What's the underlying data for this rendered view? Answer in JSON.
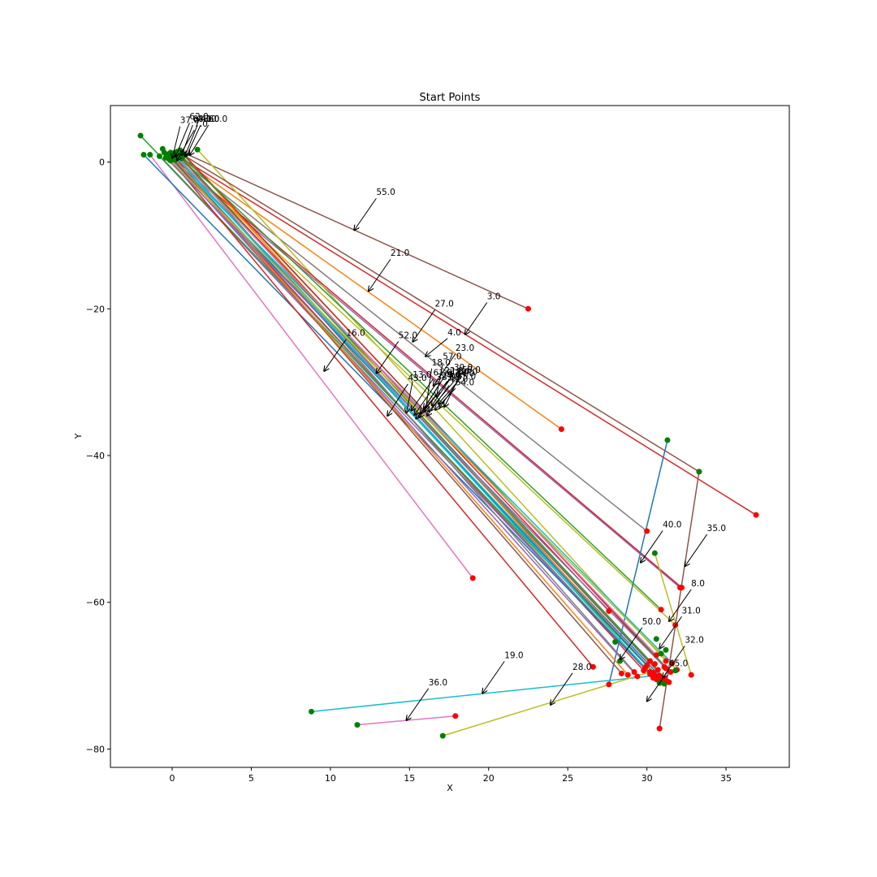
{
  "chart_data": {
    "type": "scatter",
    "title": "Start Points",
    "xlabel": "X",
    "ylabel": "Y",
    "xlim": [
      -3.9,
      39.0
    ],
    "ylim": [
      -82.5,
      7.7
    ],
    "xticks": [
      0,
      5,
      10,
      15,
      20,
      25,
      30,
      35
    ],
    "yticks": [
      0,
      -20,
      -40,
      -60,
      -80
    ],
    "grid": false,
    "line_colors": [
      "#1f77b4",
      "#ff7f0e",
      "#2ca02c",
      "#d62728",
      "#9467bd",
      "#8c564b",
      "#e377c2",
      "#7f7f7f",
      "#bcbd22",
      "#17becf"
    ],
    "start_color": "#008000",
    "end_color": "#ff0000",
    "segments": [
      {
        "label": "55.0",
        "start": [
          0.5,
          1.5
        ],
        "end": [
          22.5,
          -20.0
        ],
        "color": "#8c564b",
        "ann_xy": [
          11.5,
          -9.3
        ],
        "ann_text": [
          12.9,
          -4.5
        ]
      },
      {
        "label": "21.0",
        "start": [
          0.2,
          1.0
        ],
        "end": [
          24.6,
          -36.4
        ],
        "color": "#ff7f0e",
        "ann_xy": [
          12.4,
          -17.6
        ],
        "ann_text": [
          13.8,
          -12.8
        ]
      },
      {
        "label": "3.0",
        "start": [
          0.4,
          0.8
        ],
        "end": [
          36.9,
          -48.1
        ],
        "color": "#d62728",
        "ann_xy": [
          18.5,
          -23.5
        ],
        "ann_text": [
          19.9,
          -18.7
        ]
      },
      {
        "label": "27.0",
        "start": [
          0.0,
          1.2
        ],
        "end": [
          30.0,
          -50.3
        ],
        "color": "#7f7f7f",
        "ann_xy": [
          15.2,
          -24.5
        ],
        "ann_text": [
          16.6,
          -19.7
        ]
      },
      {
        "label": "4.0",
        "start": [
          -0.3,
          0.9
        ],
        "end": [
          32.1,
          -58.0
        ],
        "color": "#9467bd",
        "ann_xy": [
          16.0,
          -26.5
        ],
        "ann_text": [
          17.4,
          -23.6
        ]
      },
      {
        "label": "16.0",
        "start": [
          -1.4,
          1.0
        ],
        "end": [
          19.0,
          -56.7
        ],
        "color": "#e377c2",
        "ann_xy": [
          9.6,
          -28.5
        ],
        "ann_text": [
          11.0,
          -23.7
        ]
      },
      {
        "label": "52.0",
        "start": [
          -0.1,
          0.6
        ],
        "end": [
          29.8,
          -69.3
        ],
        "color": "#d62728",
        "ann_xy": [
          12.9,
          -28.8
        ],
        "ann_text": [
          14.3,
          -24.0
        ]
      },
      {
        "label": "23.0",
        "start": [
          1.6,
          1.7
        ],
        "end": [
          31.2,
          -68.0
        ],
        "color": "#bcbd22",
        "ann_xy": [
          16.5,
          -30.5
        ],
        "ann_text": [
          17.9,
          -25.7
        ]
      },
      {
        "label": "57.0",
        "start": [
          0.7,
          1.0
        ],
        "end": [
          31.5,
          -69.5
        ],
        "color": "#2ca02c",
        "ann_xy": [
          16.7,
          -32.0
        ],
        "ann_text": [
          17.1,
          -26.9
        ]
      },
      {
        "label": "18.0",
        "start": [
          -0.6,
          1.8
        ],
        "end": [
          30.8,
          -70.0
        ],
        "color": "#1f77b4",
        "ann_xy": [
          16.0,
          -34.0
        ],
        "ann_text": [
          16.4,
          -27.7
        ]
      },
      {
        "label": "58.0",
        "start": [
          0.3,
          0.5
        ],
        "end": [
          31.3,
          -70.8
        ],
        "color": "#8c564b",
        "ann_xy": [
          16.9,
          -33.5
        ],
        "ann_text": [
          18.3,
          -28.7
        ]
      },
      {
        "label": "13.0",
        "start": [
          0.1,
          0.9
        ],
        "end": [
          30.9,
          -70.6
        ],
        "color": "#17becf",
        "ann_xy": [
          14.8,
          -34.2
        ],
        "ann_text": [
          15.2,
          -29.4
        ]
      },
      {
        "label": "43.0",
        "start": [
          -0.8,
          0.8
        ],
        "end": [
          30.4,
          -70.3
        ],
        "color": "#9467bd",
        "ann_xy": [
          13.6,
          -34.6
        ],
        "ann_text": [
          14.9,
          -29.8
        ]
      },
      {
        "label": "40.0",
        "start": [
          -0.2,
          0.4
        ],
        "end": [
          30.2,
          -69.8
        ],
        "color": "#7f7f7f",
        "ann_xy": [
          29.6,
          -54.6
        ],
        "ann_text": [
          31.0,
          -49.8
        ]
      },
      {
        "label": "35.0",
        "start": [
          0.6,
          1.1
        ],
        "end": [
          33.3,
          -42.2
        ],
        "color": "#8c564b",
        "ann_xy": [
          32.4,
          -55.1
        ],
        "ann_text": [
          33.8,
          -50.3
        ]
      },
      {
        "label": "8.0",
        "start": [
          0.0,
          0.7
        ],
        "end": [
          32.2,
          -58.0
        ],
        "color": "#d62728",
        "ann_xy": [
          31.4,
          -62.6
        ],
        "ann_text": [
          32.8,
          -57.8
        ]
      },
      {
        "label": "31.0",
        "start": [
          -0.1,
          1.3
        ],
        "end": [
          31.8,
          -63.1
        ],
        "color": "#bcbd22",
        "ann_xy": [
          30.8,
          -66.3
        ],
        "ann_text": [
          32.2,
          -61.5
        ]
      },
      {
        "label": "50.0",
        "start": [
          31.3,
          -37.9
        ],
        "end": [
          27.6,
          -71.2
        ],
        "color": "#1f77b4",
        "ann_xy": [
          28.3,
          -67.8
        ],
        "ann_text": [
          29.7,
          -63.0
        ]
      },
      {
        "label": "32.0",
        "start": [
          30.5,
          -53.3
        ],
        "end": [
          32.8,
          -69.9
        ],
        "color": "#bcbd22",
        "ann_xy": [
          31.0,
          -70.3
        ],
        "ann_text": [
          32.4,
          -65.5
        ]
      },
      {
        "label": "65.0",
        "start": [
          33.3,
          -42.2
        ],
        "end": [
          30.8,
          -77.2
        ],
        "color": "#8c564b",
        "ann_xy": [
          30.0,
          -73.5
        ],
        "ann_text": [
          31.4,
          -68.7
        ]
      },
      {
        "label": "19.0",
        "start": [
          8.8,
          -74.9
        ],
        "end": [
          30.5,
          -70.0
        ],
        "color": "#17becf",
        "ann_xy": [
          19.6,
          -72.4
        ],
        "ann_text": [
          21.0,
          -67.6
        ]
      },
      {
        "label": "28.0",
        "start": [
          17.1,
          -78.2
        ],
        "end": [
          30.2,
          -69.5
        ],
        "color": "#bcbd22",
        "ann_xy": [
          23.9,
          -74.0
        ],
        "ann_text": [
          25.3,
          -69.2
        ]
      },
      {
        "label": "36.0",
        "start": [
          11.7,
          -76.7
        ],
        "end": [
          17.9,
          -75.5
        ],
        "color": "#e377c2",
        "ann_xy": [
          14.8,
          -76.1
        ],
        "ann_text": [
          16.2,
          -71.3
        ]
      },
      {
        "label": "37.0",
        "start": [
          -2.0,
          3.6
        ],
        "end": [
          31.0,
          -70.9
        ],
        "color": "#2ca02c",
        "ann_xy": [
          0.0,
          0.5
        ],
        "ann_text": [
          0.5,
          5.3
        ]
      },
      {
        "label": "62.0",
        "start": [
          -1.8,
          1.0
        ],
        "end": [
          30.6,
          -70.5
        ],
        "color": "#1f77b4",
        "ann_xy": [
          0.2,
          0.7
        ],
        "ann_text": [
          1.1,
          5.8
        ]
      },
      {
        "label": "68.0",
        "start": [
          0.8,
          0.9
        ],
        "end": [
          30.4,
          -69.6
        ],
        "color": "#ff7f0e",
        "ann_xy": [
          0.6,
          0.9
        ],
        "ann_text": [
          1.3,
          5.5
        ]
      },
      {
        "label": "46.0",
        "start": [
          0.5,
          1.6
        ],
        "end": [
          31.1,
          -68.8
        ],
        "color": "#d62728",
        "ann_xy": [
          0.8,
          0.8
        ],
        "ann_text": [
          1.6,
          5.5
        ]
      },
      {
        "label": "41.0",
        "start": [
          0.2,
          0.7
        ],
        "end": [
          30.7,
          -69.2
        ],
        "color": "#7f7f7f",
        "ann_xy": [
          0.9,
          0.8
        ],
        "ann_text": [
          1.8,
          5.5
        ]
      },
      {
        "label": "60.0",
        "start": [
          -0.5,
          1.3
        ],
        "end": [
          29.4,
          -70.1
        ],
        "color": "#9467bd",
        "ann_xy": [
          1.1,
          0.9
        ],
        "ann_text": [
          2.3,
          5.5
        ]
      },
      {
        "label": "7.0",
        "start": [
          0.1,
          0.4
        ],
        "end": [
          31.6,
          -68.3
        ],
        "color": "#17becf",
        "ann_xy": [
          0.3,
          0.2
        ],
        "ann_text": [
          1.4,
          4.8
        ]
      },
      {
        "label": "9.0",
        "start": [
          0.4,
          1.0
        ],
        "end": [
          27.6,
          -61.2
        ],
        "color": "#d62728",
        "ann_xy": [
          15.6,
          -34.8
        ],
        "ann_text": [
          17.4,
          -29.4
        ]
      },
      {
        "label": "12.0",
        "start": [
          -0.3,
          0.8
        ],
        "end": [
          26.6,
          -68.8
        ],
        "color": "#d62728",
        "ann_xy": [
          15.4,
          -35.0
        ],
        "ann_text": [
          17.6,
          -29.0
        ]
      },
      {
        "label": "14.0",
        "start": [
          0.3,
          1.4
        ],
        "end": [
          30.9,
          -61.0
        ],
        "color": "#2ca02c",
        "ann_xy": [
          16.2,
          -34.0
        ],
        "ann_text": [
          17.9,
          -29.2
        ]
      },
      {
        "label": "22.0",
        "start": [
          0.0,
          0.9
        ],
        "end": [
          28.4,
          -69.7
        ],
        "color": "#8c564b",
        "ann_xy": [
          15.9,
          -33.6
        ],
        "ann_text": [
          17.2,
          -28.8
        ]
      },
      {
        "label": "24.0",
        "start": [
          0.6,
          0.5
        ],
        "end": [
          29.2,
          -69.5
        ],
        "color": "#7f7f7f",
        "ann_xy": [
          15.7,
          -34.3
        ],
        "ann_text": [
          17.0,
          -29.5
        ]
      },
      {
        "label": "30.0",
        "start": [
          -0.2,
          1.1
        ],
        "end": [
          30.0,
          -68.6
        ],
        "color": "#1f77b4",
        "ann_xy": [
          16.4,
          -33.2
        ],
        "ann_text": [
          17.8,
          -28.4
        ]
      },
      {
        "label": "33.0",
        "start": [
          0.2,
          0.3
        ],
        "end": [
          28.8,
          -69.9
        ],
        "color": "#ff7f0e",
        "ann_xy": [
          15.3,
          -34.5
        ],
        "ann_text": [
          16.7,
          -29.7
        ]
      },
      {
        "label": "45.0",
        "start": [
          0.5,
          0.7
        ],
        "end": [
          30.2,
          -68.0
        ],
        "color": "#2ca02c",
        "ann_xy": [
          16.8,
          -33.0
        ],
        "ann_text": [
          18.0,
          -29.6
        ]
      },
      {
        "label": "49.0",
        "start": [
          -0.4,
          0.6
        ],
        "end": [
          31.2,
          -69.0
        ],
        "color": "#9467bd",
        "ann_xy": [
          16.1,
          -34.6
        ],
        "ann_text": [
          17.5,
          -30.0
        ]
      },
      {
        "label": "54.0",
        "start": [
          0.1,
          1.2
        ],
        "end": [
          30.6,
          -67.2
        ],
        "color": "#e377c2",
        "ann_xy": [
          16.6,
          -33.8
        ],
        "ann_text": [
          17.9,
          -30.4
        ]
      },
      {
        "label": "61.0",
        "start": [
          0.3,
          0.6
        ],
        "end": [
          29.9,
          -68.9
        ],
        "color": "#17becf",
        "ann_xy": [
          15.1,
          -33.9
        ],
        "ann_text": [
          16.5,
          -29.1
        ]
      },
      {
        "label": "64.0",
        "start": [
          -0.1,
          0.2
        ],
        "end": [
          31.9,
          -69.2
        ],
        "color": "#bcbd22",
        "ann_xy": [
          17.2,
          -33.4
        ],
        "ann_text": [
          18.1,
          -29.0
        ]
      }
    ],
    "extra_points": [
      {
        "xy": [
          28.0,
          -65.4
        ],
        "kind": "start"
      },
      {
        "xy": [
          30.6,
          -65.0
        ],
        "kind": "start"
      },
      {
        "xy": [
          31.2,
          -66.5
        ],
        "kind": "start"
      },
      {
        "xy": [
          30.9,
          -67.0
        ],
        "kind": "start"
      },
      {
        "xy": [
          31.1,
          -71.1
        ],
        "kind": "start"
      },
      {
        "xy": [
          30.8,
          -71.0
        ],
        "kind": "start"
      },
      {
        "xy": [
          31.8,
          -69.3
        ],
        "kind": "start"
      },
      {
        "xy": [
          28.3,
          -68.0
        ],
        "kind": "start"
      },
      {
        "xy": [
          30.5,
          -68.4
        ],
        "kind": "end"
      },
      {
        "xy": [
          31.4,
          -70.9
        ],
        "kind": "end"
      },
      {
        "xy": [
          31.1,
          -70.4
        ],
        "kind": "end"
      }
    ]
  }
}
